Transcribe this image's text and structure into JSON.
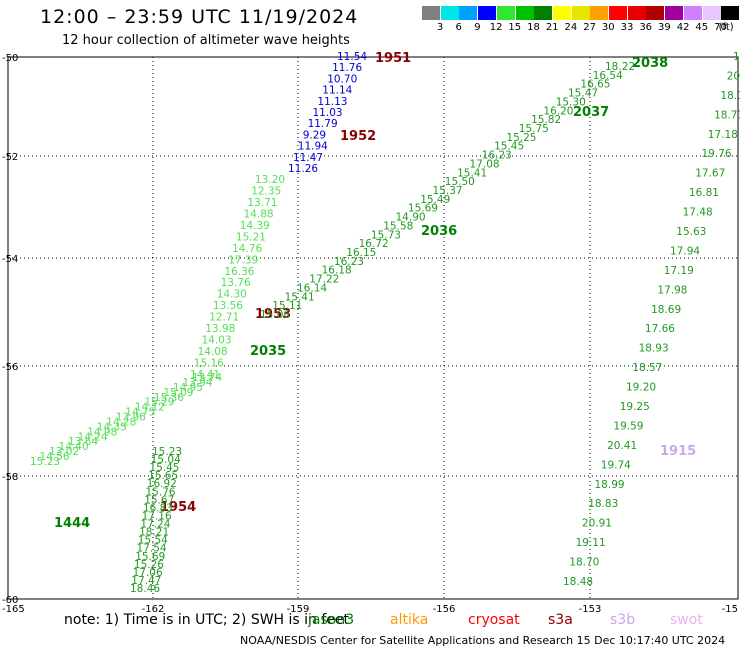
{
  "header": {
    "title": "12:00 – 23:59 UTC 11/19/2024",
    "subtitle": "12 hour collection of altimeter wave heights"
  },
  "legend": {
    "unit": "(ft)",
    "bins": [
      {
        "label": "3",
        "color": "#808080"
      },
      {
        "label": "6",
        "color": "#00e5e5"
      },
      {
        "label": "9",
        "color": "#00a0ff"
      },
      {
        "label": "12",
        "color": "#0000ff"
      },
      {
        "label": "15",
        "color": "#32e632"
      },
      {
        "label": "18",
        "color": "#00c000"
      },
      {
        "label": "21",
        "color": "#008000"
      },
      {
        "label": "24",
        "color": "#ffff00"
      },
      {
        "label": "27",
        "color": "#e6e600"
      },
      {
        "label": "30",
        "color": "#ffa000"
      },
      {
        "label": "33",
        "color": "#ff0000"
      },
      {
        "label": "36",
        "color": "#e60000"
      },
      {
        "label": "39",
        "color": "#b00000"
      },
      {
        "label": "42",
        "color": "#a000a0"
      },
      {
        "label": "45",
        "color": "#d080ff"
      },
      {
        "label": "70",
        "color": "#e6c8ff"
      },
      {
        "label": "",
        "color": "#000000"
      }
    ]
  },
  "axes": {
    "lon_ticks": [
      "-165",
      "-162",
      "-159",
      "-156",
      "-153",
      "-15"
    ],
    "lat_ticks": [
      "-50",
      "-52",
      "-54",
      "-56",
      "-58",
      "-60"
    ]
  },
  "passes": [
    {
      "label": "1951",
      "color": "#8b0000"
    },
    {
      "label": "1952",
      "color": "#8b0000"
    },
    {
      "label": "1953",
      "color": "#8b0000"
    },
    {
      "label": "1954",
      "color": "#8b0000"
    },
    {
      "label": "2038",
      "color": "#008000"
    },
    {
      "label": "2037",
      "color": "#008000"
    },
    {
      "label": "2036",
      "color": "#008000"
    },
    {
      "label": "2035",
      "color": "#008000"
    },
    {
      "label": "1444",
      "color": "#008000"
    },
    {
      "label": "1915",
      "color": "#c8a8e8"
    }
  ],
  "tracks": [
    {
      "name": "blue-1951",
      "color": "#0000cc",
      "values": [
        "11.54",
        "11.76",
        "10.70",
        "11.14",
        "11.13",
        "11.03",
        "11.79",
        "9.29",
        "11.94",
        "11.47",
        "11.26"
      ]
    },
    {
      "name": "light-1952",
      "color": "#55dd55",
      "values": [
        "13.20",
        "12.35",
        "13.71",
        "14.88",
        "14.39",
        "15.21",
        "14.76",
        "17.39",
        "16.36",
        "13.76",
        "14.30",
        "13.56",
        "12.71",
        "13.98",
        "14.03",
        "14.08",
        "15.16",
        "14.41"
      ]
    },
    {
      "name": "light-1953",
      "color": "#55dd55",
      "values": [
        "13.74",
        "13.94",
        "14.95",
        "15.09",
        "15.36",
        "15.29",
        "14.12",
        "14.75",
        "13.96",
        "14.28",
        "14.35",
        "14.98",
        "14.24",
        "13.64",
        "14.40",
        "13.02",
        "14.56",
        "15.23"
      ]
    },
    {
      "name": "green-1954",
      "color": "#229922",
      "values": [
        "15.23",
        "15.04",
        "15.45",
        "15.65",
        "16.92",
        "15.76",
        "15.67",
        "16.83",
        "17.16",
        "17.24",
        "18.21",
        "15.54",
        "17.54",
        "15.69",
        "15.26",
        "17.06",
        "17.47",
        "18.46"
      ]
    },
    {
      "name": "green-2035-2038",
      "color": "#229922",
      "values": [
        "15.06",
        "15.11",
        "15.41",
        "16.14",
        "17.22",
        "16.18",
        "16.23",
        "16.15",
        "16.72",
        "15.73",
        "15.58",
        "14.90",
        "15.69",
        "15.49",
        "15.37",
        "15.50",
        "15.41",
        "17.08",
        "16.23",
        "15.45",
        "15.25",
        "15.75",
        "15.82",
        "16.20",
        "15.30",
        "15.47",
        "16.65",
        "16.54",
        "18.22"
      ]
    },
    {
      "name": "green-1915",
      "color": "#229922",
      "values": [
        "18.48",
        "18.70",
        "19.11",
        "20.91",
        "18.83",
        "18.99",
        "19.74",
        "20.41",
        "19.59",
        "19.25",
        "19.20",
        "18.57",
        "18.93",
        "17.66",
        "18.69",
        "17.98",
        "17.19",
        "17.94",
        "15.63",
        "17.48",
        "16.81",
        "17.67",
        "19.76",
        "17.18",
        "18.73",
        "18.1",
        "20.4",
        "19"
      ]
    }
  ],
  "footer": {
    "note": "note:  1) Time is in UTC; 2) SWH is in feet",
    "satellites": [
      {
        "name": "jason3",
        "color": "#008000"
      },
      {
        "name": "altika",
        "color": "#ff9900"
      },
      {
        "name": "cryosat",
        "color": "#ff0000"
      },
      {
        "name": "s3a",
        "color": "#8b0000"
      },
      {
        "name": "s3b",
        "color": "#c8a8e8"
      },
      {
        "name": "swot",
        "color": "#f0b0f0"
      }
    ],
    "credit": "NOAA/NESDIS Center for Satellite Applications and Research    15 Dec 10:17:40 UTC 2024"
  }
}
